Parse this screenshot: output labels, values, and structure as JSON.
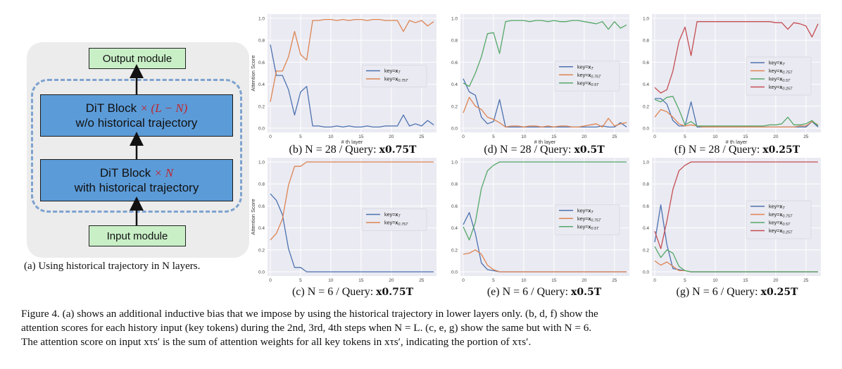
{
  "diagram": {
    "output_module": "Output module",
    "input_module": "Input module",
    "block_top_line1": "DiT Block",
    "block_top_mult": "× (L − N)",
    "block_top_line2": "w/o historical trajectory",
    "block_bottom_line1": "DiT Block",
    "block_bottom_mult": "× N",
    "block_bottom_line2": "with historical trajectory",
    "caption": "(a) Using historical trajectory in N layers."
  },
  "colors": {
    "blue": "#4c72b0",
    "orange": "#dd8452",
    "green": "#55a868",
    "red": "#c44e52",
    "bg": "#eaeaf2"
  },
  "chart_data": [
    {
      "id": "b",
      "type": "line",
      "caption_prefix": "(b) N = 28 / Query: ",
      "caption_query": "x0.75T",
      "ylabel": "Attention Score",
      "xlabel": "# th layer",
      "ylim": [
        0,
        1
      ],
      "xlim": [
        0,
        27
      ],
      "xticks": [
        0,
        5,
        10,
        15,
        20,
        25
      ],
      "yticks": [
        0.0,
        0.2,
        0.4,
        0.6,
        0.8,
        1.0
      ],
      "legend": "center-right",
      "series": [
        {
          "name": "key=xT",
          "color": "#4c72b0",
          "values": [
            0.76,
            0.48,
            0.48,
            0.35,
            0.12,
            0.33,
            0.38,
            0.02,
            0.02,
            0.01,
            0.01,
            0.02,
            0.01,
            0.02,
            0.01,
            0.01,
            0.02,
            0.01,
            0.01,
            0.02,
            0.02,
            0.02,
            0.12,
            0.02,
            0.04,
            0.02,
            0.07,
            0.03
          ]
        },
        {
          "name": "key=x0.75T",
          "color": "#dd8452",
          "values": [
            0.24,
            0.52,
            0.52,
            0.65,
            0.88,
            0.67,
            0.62,
            0.98,
            0.98,
            0.99,
            0.99,
            0.98,
            0.99,
            0.98,
            0.99,
            0.99,
            0.98,
            0.99,
            0.99,
            0.98,
            0.98,
            0.98,
            0.88,
            0.98,
            0.96,
            0.98,
            0.93,
            0.97
          ]
        }
      ]
    },
    {
      "id": "d",
      "type": "line",
      "caption_prefix": "(d) N = 28 / Query: ",
      "caption_query": "x0.5T",
      "ylabel": "",
      "xlabel": "# th layer",
      "ylim": [
        0,
        1
      ],
      "xlim": [
        0,
        27
      ],
      "xticks": [
        0,
        5,
        10,
        15,
        20,
        25
      ],
      "yticks": [
        0.0,
        0.2,
        0.4,
        0.6,
        0.8,
        1.0
      ],
      "legend": "center-right",
      "series": [
        {
          "name": "key=xT",
          "color": "#4c72b0",
          "values": [
            0.45,
            0.33,
            0.3,
            0.1,
            0.04,
            0.06,
            0.26,
            0.01,
            0.01,
            0.01,
            0.01,
            0.01,
            0.01,
            0.01,
            0.01,
            0.01,
            0.01,
            0.01,
            0.01,
            0.01,
            0.01,
            0.01,
            0.01,
            0.02,
            0.01,
            0.01,
            0.05,
            0.01
          ]
        },
        {
          "name": "key=x0.75T",
          "color": "#dd8452",
          "values": [
            0.14,
            0.28,
            0.2,
            0.17,
            0.1,
            0.08,
            0.05,
            0.01,
            0.02,
            0.02,
            0.01,
            0.02,
            0.02,
            0.01,
            0.02,
            0.01,
            0.02,
            0.02,
            0.01,
            0.01,
            0.02,
            0.03,
            0.04,
            0.01,
            0.09,
            0.02,
            0.04,
            0.05
          ]
        },
        {
          "name": "key=x0.5T",
          "color": "#55a868",
          "values": [
            0.41,
            0.38,
            0.5,
            0.65,
            0.86,
            0.87,
            0.68,
            0.97,
            0.98,
            0.98,
            0.98,
            0.97,
            0.98,
            0.98,
            0.97,
            0.98,
            0.97,
            0.97,
            0.98,
            0.98,
            0.97,
            0.96,
            0.95,
            0.97,
            0.9,
            0.97,
            0.91,
            0.94
          ]
        }
      ]
    },
    {
      "id": "f",
      "type": "line",
      "caption_prefix": "(f) N = 28 / Query: ",
      "caption_query": "x0.25T",
      "ylabel": "",
      "xlabel": "# th layer",
      "ylim": [
        0,
        1
      ],
      "xlim": [
        0,
        27
      ],
      "xticks": [
        0,
        5,
        10,
        15,
        20,
        25
      ],
      "yticks": [
        0.0,
        0.2,
        0.4,
        0.6,
        0.8,
        1.0
      ],
      "legend": "center-right",
      "series": [
        {
          "name": "key=xT",
          "color": "#4c72b0",
          "values": [
            0.27,
            0.27,
            0.22,
            0.07,
            0.02,
            0.02,
            0.24,
            0.01,
            0.01,
            0.01,
            0.01,
            0.01,
            0.01,
            0.01,
            0.01,
            0.01,
            0.01,
            0.01,
            0.01,
            0.01,
            0.01,
            0.01,
            0.01,
            0.01,
            0.01,
            0.01,
            0.06,
            0.01
          ]
        },
        {
          "name": "key=x0.75T",
          "color": "#dd8452",
          "values": [
            0.1,
            0.17,
            0.15,
            0.1,
            0.04,
            0.02,
            0.03,
            0.02,
            0.01,
            0.01,
            0.01,
            0.01,
            0.01,
            0.01,
            0.01,
            0.01,
            0.01,
            0.01,
            0.01,
            0.01,
            0.01,
            0.01,
            0.01,
            0.01,
            0.02,
            0.02,
            0.06,
            0.03
          ]
        },
        {
          "name": "key=x0.5T",
          "color": "#55a868",
          "values": [
            0.26,
            0.24,
            0.28,
            0.29,
            0.17,
            0.03,
            0.06,
            0.02,
            0.02,
            0.02,
            0.02,
            0.02,
            0.02,
            0.02,
            0.02,
            0.02,
            0.02,
            0.02,
            0.02,
            0.03,
            0.03,
            0.04,
            0.1,
            0.03,
            0.03,
            0.04,
            0.07,
            0.02
          ]
        },
        {
          "name": "key=x0.25T",
          "color": "#c44e52",
          "values": [
            0.37,
            0.32,
            0.35,
            0.52,
            0.79,
            0.92,
            0.66,
            0.97,
            0.97,
            0.97,
            0.97,
            0.97,
            0.97,
            0.97,
            0.97,
            0.97,
            0.97,
            0.97,
            0.97,
            0.97,
            0.96,
            0.96,
            0.9,
            0.96,
            0.95,
            0.93,
            0.83,
            0.95
          ]
        }
      ]
    },
    {
      "id": "c",
      "type": "line",
      "caption_prefix": "(c) N = 6 / Query: ",
      "caption_query": "x0.75T",
      "ylabel": "Attention Score",
      "xlabel": "",
      "ylim": [
        0,
        1
      ],
      "xlim": [
        0,
        27
      ],
      "xticks": [
        0,
        5,
        10,
        15,
        20,
        25
      ],
      "yticks": [
        0.0,
        0.2,
        0.4,
        0.6,
        0.8,
        1.0
      ],
      "legend": "center-right",
      "series": [
        {
          "name": "key=xT",
          "color": "#4c72b0",
          "values": [
            0.71,
            0.65,
            0.52,
            0.21,
            0.04,
            0.04,
            0,
            0,
            0,
            0,
            0,
            0,
            0,
            0,
            0,
            0,
            0,
            0,
            0,
            0,
            0,
            0,
            0,
            0,
            0,
            0,
            0,
            0
          ]
        },
        {
          "name": "key=x0.75T",
          "color": "#dd8452",
          "values": [
            0.29,
            0.35,
            0.48,
            0.79,
            0.96,
            0.96,
            1,
            1,
            1,
            1,
            1,
            1,
            1,
            1,
            1,
            1,
            1,
            1,
            1,
            1,
            1,
            1,
            1,
            1,
            1,
            1,
            1,
            1
          ]
        }
      ]
    },
    {
      "id": "e",
      "type": "line",
      "caption_prefix": "(e) N = 6 / Query: ",
      "caption_query": "x0.5T",
      "ylabel": "",
      "xlabel": "",
      "ylim": [
        0,
        1
      ],
      "xlim": [
        0,
        27
      ],
      "xticks": [
        0,
        5,
        10,
        15,
        20,
        25
      ],
      "yticks": [
        0.0,
        0.2,
        0.4,
        0.6,
        0.8,
        1.0
      ],
      "legend": "center-right",
      "series": [
        {
          "name": "key=xT",
          "color": "#4c72b0",
          "values": [
            0.43,
            0.54,
            0.35,
            0.08,
            0.02,
            0.01,
            0,
            0,
            0,
            0,
            0,
            0,
            0,
            0,
            0,
            0,
            0,
            0,
            0,
            0,
            0,
            0,
            0,
            0,
            0,
            0,
            0,
            0
          ]
        },
        {
          "name": "key=x0.75T",
          "color": "#dd8452",
          "values": [
            0.16,
            0.17,
            0.2,
            0.16,
            0.06,
            0.02,
            0,
            0,
            0,
            0,
            0,
            0,
            0,
            0,
            0,
            0,
            0,
            0,
            0,
            0,
            0,
            0,
            0,
            0,
            0,
            0,
            0,
            0
          ]
        },
        {
          "name": "key=x0.5T",
          "color": "#55a868",
          "values": [
            0.41,
            0.29,
            0.45,
            0.76,
            0.92,
            0.97,
            1,
            1,
            1,
            1,
            1,
            1,
            1,
            1,
            1,
            1,
            1,
            1,
            1,
            1,
            1,
            1,
            1,
            1,
            1,
            1,
            1,
            1
          ]
        }
      ]
    },
    {
      "id": "g",
      "type": "line",
      "caption_prefix": "(g) N = 6 / Query: ",
      "caption_query": "x0.25T",
      "ylabel": "",
      "xlabel": "",
      "ylim": [
        0,
        1
      ],
      "xlim": [
        0,
        27
      ],
      "xticks": [
        0,
        5,
        10,
        15,
        20,
        25
      ],
      "yticks": [
        0.0,
        0.2,
        0.4,
        0.6,
        0.8,
        1.0
      ],
      "legend": "center-right",
      "series": [
        {
          "name": "key=xT",
          "color": "#4c72b0",
          "values": [
            0.27,
            0.61,
            0.25,
            0.03,
            0.02,
            0.01,
            0,
            0,
            0,
            0,
            0,
            0,
            0,
            0,
            0,
            0,
            0,
            0,
            0,
            0,
            0,
            0,
            0,
            0,
            0,
            0,
            0,
            0
          ]
        },
        {
          "name": "key=x0.75T",
          "color": "#dd8452",
          "values": [
            0.1,
            0.06,
            0.09,
            0.05,
            0.01,
            0.01,
            0,
            0,
            0,
            0,
            0,
            0,
            0,
            0,
            0,
            0,
            0,
            0,
            0,
            0,
            0,
            0,
            0,
            0,
            0,
            0,
            0,
            0
          ]
        },
        {
          "name": "key=x0.5T",
          "color": "#55a868",
          "values": [
            0.23,
            0.13,
            0.2,
            0.17,
            0.05,
            0.01,
            0,
            0,
            0,
            0,
            0,
            0,
            0,
            0,
            0,
            0,
            0,
            0,
            0,
            0,
            0,
            0,
            0,
            0,
            0,
            0,
            0,
            0
          ]
        },
        {
          "name": "key=x0.25T",
          "color": "#c44e52",
          "values": [
            0.37,
            0.21,
            0.46,
            0.75,
            0.92,
            0.97,
            1,
            1,
            1,
            1,
            1,
            1,
            1,
            1,
            1,
            1,
            1,
            1,
            1,
            1,
            1,
            1,
            1,
            1,
            1,
            1,
            1,
            1
          ]
        }
      ]
    }
  ],
  "figure_caption": {
    "line1": "Figure 4. (a) shows an additional inductive bias that we impose by using the historical trajectory in lower layers only. (b, d, f) show the",
    "line2": "attention scores for each history input (key tokens) during the 2nd, 3rd, 4th steps when N = L. (c, e, g) show the same but with N = 6.",
    "line3": "The attention score on input xτs′ is the sum of attention weights for all key tokens in xτs′, indicating the portion of xτs′."
  }
}
